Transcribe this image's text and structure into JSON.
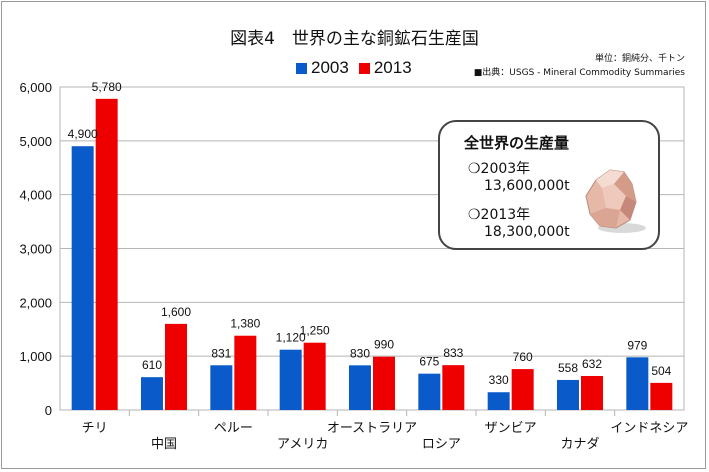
{
  "chart_data": {
    "type": "bar",
    "title": "図表4　世界の主な銅鉱石生産国",
    "unit_note": "単位：銅純分、千トン",
    "source_note": "■出典：USGS - Mineral Commodity Summaries",
    "categories": [
      "チリ",
      "中国",
      "ペルー",
      "アメリカ",
      "オーストラリア",
      "ロシア",
      "ザンビア",
      "カナダ",
      "インドネシア"
    ],
    "series": [
      {
        "name": "2003",
        "color": "#0a5bc9",
        "values": [
          4900,
          610,
          831,
          1120,
          830,
          675,
          330,
          558,
          979
        ]
      },
      {
        "name": "2013",
        "color": "#ee0000",
        "values": [
          5780,
          1600,
          1380,
          1250,
          990,
          833,
          760,
          632,
          504
        ]
      }
    ],
    "data_labels": {
      "2003": [
        "4,900",
        "610",
        "831",
        "1,120",
        "830",
        "675",
        "330",
        "558",
        "979"
      ],
      "2013": [
        "5,780",
        "1,600",
        "1,380",
        "1,250",
        "990",
        "833",
        "760",
        "632",
        "504"
      ]
    },
    "ylim": [
      0,
      6000
    ],
    "yticks": [
      "0",
      "1,000",
      "2,000",
      "3,000",
      "4,000",
      "5,000",
      "6,000"
    ],
    "ytick_values": [
      0,
      1000,
      2000,
      3000,
      4000,
      5000,
      6000
    ],
    "grid": true,
    "legend_position": "top-center",
    "callout": {
      "title": "全世界の生産量",
      "items": [
        {
          "year": "❍2003年",
          "value": "13,600,000t"
        },
        {
          "year": "❍2013年",
          "value": "18,300,000t"
        }
      ],
      "icon": "copper-ore-rock-icon"
    }
  }
}
